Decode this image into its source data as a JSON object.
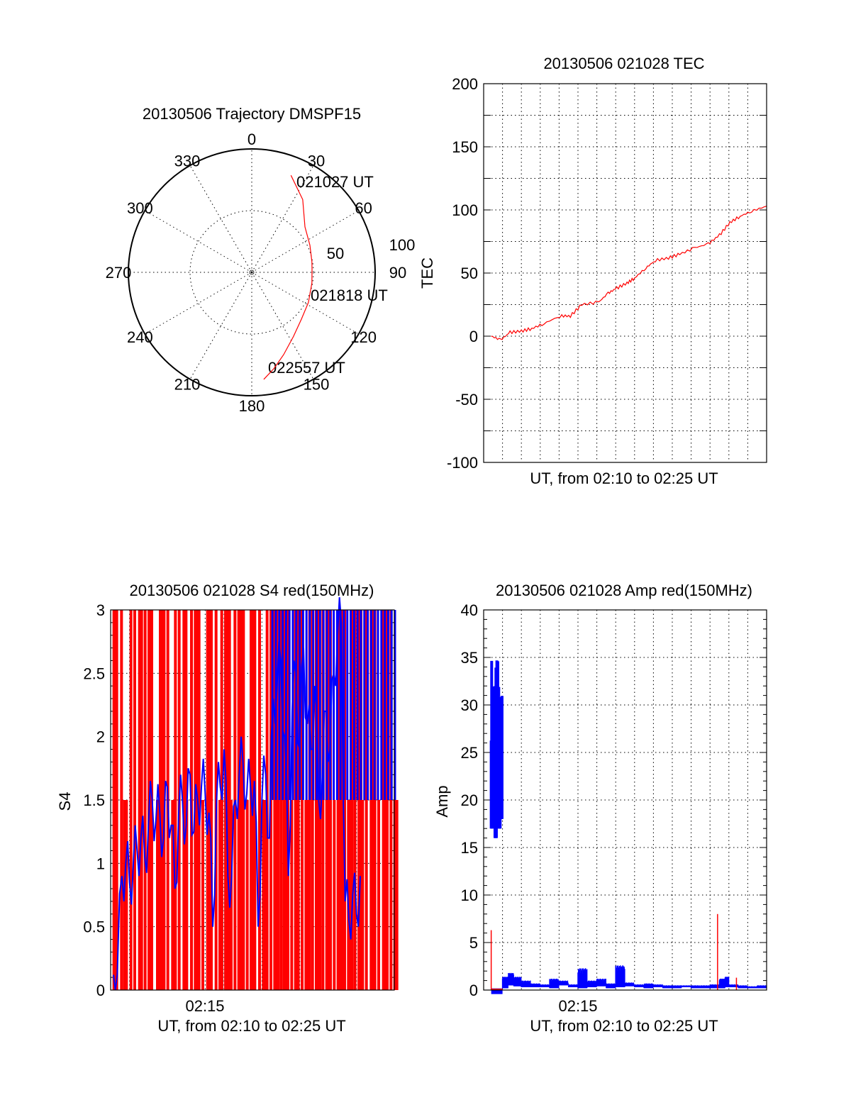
{
  "colors": {
    "red": "#ff0000",
    "blue": "#0000ff",
    "axis": "#000000"
  },
  "chart_data": [
    {
      "type": "scatter",
      "subtype": "polar",
      "title": "20130506 Trajectory DMSPF15",
      "angle_labels": [
        "0",
        "30",
        "60",
        "90",
        "120",
        "150",
        "180",
        "210",
        "240",
        "270",
        "300",
        "330"
      ],
      "radius_labels": [
        "50",
        "100"
      ],
      "rlim": [
        0,
        100
      ],
      "grid": true,
      "annotations": [
        "021027 UT",
        "021818 UT",
        "022557 UT"
      ],
      "series": [
        {
          "name": "trajectory",
          "color": "#ff0000",
          "azimuth": [
            22,
            35,
            49.5,
            65,
            80,
            87.3,
            100,
            118,
            133.3,
            147,
            158.8,
            167,
            173.6
          ],
          "radius": [
            84.8,
            72,
            56.7,
            52,
            49.5,
            48.9,
            49.5,
            52,
            55.3,
            62,
            71.5,
            80,
            87.3
          ]
        }
      ]
    },
    {
      "type": "line",
      "title": "20130506 021028 TEC",
      "xlabel": "UT, from 02:10 to 02:25 UT",
      "ylabel": "TEC",
      "xlim": [
        0,
        15
      ],
      "ylim": [
        -100,
        200
      ],
      "yticks": [
        "-100",
        "-50",
        "0",
        "50",
        "100",
        "150",
        "200"
      ],
      "grid": true,
      "series": [
        {
          "name": "TEC",
          "color": "#ff0000",
          "x": [
            0.4,
            0.9,
            1.4,
            2.0,
            2.55,
            3.2,
            4.05,
            4.6,
            5.2,
            6.1,
            6.6,
            7.05,
            7.6,
            8.0,
            8.6,
            9.1,
            9.8,
            10.4,
            11.2,
            11.9,
            12.5,
            13.05,
            13.6,
            14.2,
            15.0
          ],
          "y": [
            0,
            -3,
            3,
            4,
            6,
            10,
            16,
            16,
            25,
            27,
            34,
            38,
            42,
            46,
            54,
            60,
            62,
            65,
            70,
            73,
            80,
            90,
            95,
            99,
            103
          ]
        }
      ]
    },
    {
      "type": "line",
      "title": "20130506 021028 S4 red(150MHz)",
      "xlabel": "UT, from 02:10 to 02:25 UT",
      "ylabel": "S4",
      "xlim": [
        0,
        15
      ],
      "ylim": [
        0,
        3
      ],
      "xticks": [
        "02:15"
      ],
      "xtick_values": [
        5
      ],
      "yticks": [
        "0",
        "0.5",
        "1",
        "1.5",
        "2",
        "2.5",
        "3"
      ],
      "grid": true,
      "series": [
        {
          "name": "S4 blue",
          "color": "#0000ff",
          "x": [
            0.15,
            0.35,
            0.6,
            0.8,
            1.0,
            1.2,
            1.4,
            1.6,
            1.8,
            2.0,
            2.2,
            2.4,
            2.6,
            2.8,
            3.0,
            3.2,
            3.4,
            3.6,
            3.8,
            4.0,
            4.2,
            4.4,
            4.6,
            4.8,
            5.0,
            5.2,
            5.4,
            5.6,
            5.8,
            6.0,
            6.2,
            6.4,
            6.6,
            6.8,
            7.0,
            7.2,
            7.4,
            7.6,
            7.8,
            8.0,
            8.2,
            8.4,
            8.6,
            8.8,
            9.0,
            9.2,
            9.4,
            9.6,
            9.8,
            10.0,
            10.2,
            10.4,
            10.6,
            10.8,
            11.0,
            11.2,
            11.4,
            11.6,
            11.8,
            12.0,
            12.2,
            12.4,
            12.6,
            12.8,
            13.0,
            13.2
          ],
          "y": [
            0.12,
            0.12,
            0.9,
            1.0,
            0.85,
            1.0,
            1.1,
            1.2,
            1.05,
            1.3,
            1.5,
            1.35,
            1.4,
            1.2,
            1.6,
            1.3,
            0.8,
            1.4,
            1.5,
            1.3,
            1.7,
            1.25,
            1.5,
            1.6,
            1.55,
            1.4,
            0.5,
            1.5,
            1.6,
            1.9,
            0.9,
            0.9,
            1.5,
            1.7,
            1.8,
            1.55,
            1.6,
            1.65,
            0.5,
            1.5,
            1.7,
            1.2,
            2.3,
            2.4,
            2.6,
            2.0,
            0.9,
            2.2,
            2.5,
            1.9,
            2.7,
            2.1,
            1.9,
            2.4,
            1.5,
            1.7,
            2.2,
            1.9,
            2.5,
            2.8,
            2.9,
            0.7,
            0.55,
            0.75,
            0.6,
            0.9
          ]
        },
        {
          "name": "S4 red",
          "color": "#ff0000",
          "saturated_value": 3,
          "secondary_level": 1.5,
          "spike_times": [
            0.1,
            0.25,
            0.5,
            0.65,
            1.0,
            1.2,
            1.45,
            1.55,
            1.75,
            1.95,
            2.1,
            2.4,
            2.55,
            2.75,
            2.95,
            3.2,
            3.35,
            3.55,
            3.8,
            3.95,
            4.2,
            4.4,
            4.6,
            4.8,
            5.05,
            5.25,
            5.5,
            5.7,
            5.8,
            6.0,
            6.1,
            6.3,
            6.5,
            6.7,
            6.95,
            7.15,
            7.35,
            7.55,
            7.8,
            8.0,
            8.2,
            8.4,
            8.6,
            8.8,
            8.95,
            9.1,
            9.3,
            9.5,
            9.7,
            9.85,
            10.05,
            10.25,
            10.45,
            10.6,
            10.8,
            11.0,
            11.15,
            11.35,
            11.55,
            11.75,
            11.95,
            12.15,
            12.3,
            12.5,
            12.7,
            12.85,
            13.05,
            13.25,
            13.45,
            13.7,
            13.9,
            14.1,
            14.35,
            14.55,
            14.75,
            14.95
          ]
        }
      ]
    },
    {
      "type": "line",
      "title": "20130506 021028 Amp red(150MHz)",
      "xlabel": "UT, from 02:10 to 02:25 UT",
      "ylabel": "Amp",
      "xlim": [
        0,
        15
      ],
      "ylim": [
        0,
        40
      ],
      "xticks": [
        "02:15"
      ],
      "xtick_values": [
        5
      ],
      "yticks": [
        "0",
        "5",
        "10",
        "15",
        "20",
        "25",
        "30",
        "35",
        "40"
      ],
      "grid": true,
      "series": [
        {
          "name": "Amp blue",
          "color": "#0000ff",
          "x": [
            0.4,
            0.5,
            0.6,
            0.7,
            0.8,
            0.9,
            1.0,
            1.3,
            1.6,
            2.0,
            2.5,
            3.0,
            3.5,
            4.0,
            4.5,
            5.0,
            5.5,
            6.0,
            6.5,
            7.0,
            7.5,
            8.0,
            8.5,
            9.0,
            9.5,
            10.0,
            10.5,
            11.0,
            11.5,
            12.0,
            12.5,
            12.8,
            13.0,
            13.5,
            14.0,
            14.5,
            15.0
          ],
          "y_low": [
            17,
            18,
            16,
            19,
            17,
            18,
            0.2,
            0.5,
            0.4,
            0.3,
            0.3,
            0.3,
            0.2,
            0.5,
            0.3,
            0.2,
            0.3,
            0.4,
            0.2,
            0.3,
            0.4,
            0.3,
            0.2,
            0.3,
            0.2,
            0.2,
            0.3,
            0.2,
            0.2,
            0.2,
            0.2,
            0.3,
            0.3,
            0.2,
            0.2,
            0.2,
            0.2
          ],
          "y_high": [
            35,
            33,
            34,
            35,
            32,
            31,
            1.4,
            1.8,
            1.4,
            1.0,
            0.7,
            0.6,
            1.2,
            1.0,
            0.6,
            2.3,
            1.0,
            1.2,
            0.7,
            2.6,
            0.8,
            0.6,
            0.7,
            0.6,
            0.5,
            0.5,
            0.5,
            0.5,
            0.5,
            0.6,
            1.2,
            1.4,
            0.6,
            0.5,
            0.4,
            0.5,
            0.5
          ]
        },
        {
          "name": "Amp red",
          "color": "#ff0000",
          "x": [
            0.4,
            12.4,
            13.4
          ],
          "y": [
            6.3,
            8.0,
            1.3
          ]
        }
      ]
    }
  ]
}
